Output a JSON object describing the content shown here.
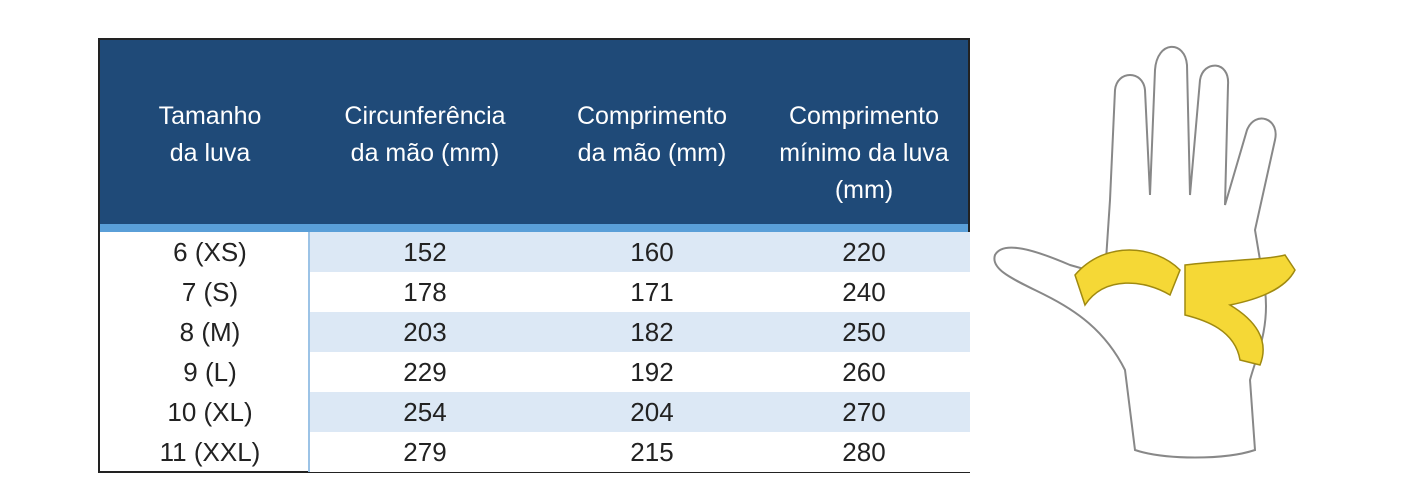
{
  "table": {
    "headers": [
      [
        "Tamanho",
        "da luva"
      ],
      [
        "Circunferência",
        "da mão (mm)"
      ],
      [
        "Comprimento",
        "da mão (mm)"
      ],
      [
        "Comprimento",
        "mínimo da luva",
        "(mm)"
      ]
    ],
    "rows": [
      [
        "6 (XS)",
        152,
        160,
        220
      ],
      [
        "7 (S)",
        178,
        171,
        240
      ],
      [
        "8 (M)",
        203,
        182,
        250
      ],
      [
        "9 (L)",
        229,
        192,
        260
      ],
      [
        "10 (XL)",
        254,
        204,
        270
      ],
      [
        "11 (XXL)",
        279,
        215,
        280
      ]
    ]
  }
}
